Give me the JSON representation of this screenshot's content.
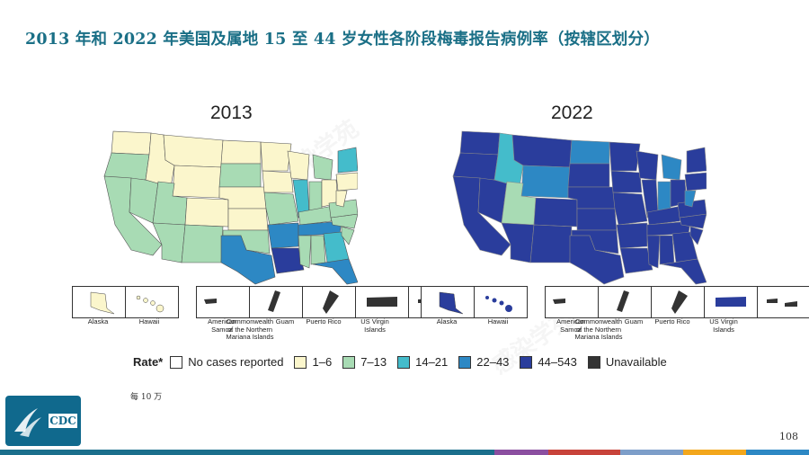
{
  "slide": {
    "title": "2013 年和 2022 年美国及属地 15 至 44 岁女性各阶段梅毒报告病例率（按辖区划分）",
    "page_number": "108",
    "footnote": "每 10 万",
    "logo_text": "CDC",
    "watermark_text": "感染学苑"
  },
  "maps": [
    {
      "year": "2013"
    },
    {
      "year": "2022"
    }
  ],
  "insets": [
    {
      "label": "Alaska",
      "key": "alaska"
    },
    {
      "label": "Hawaii",
      "key": "hawaii"
    },
    {
      "label": "American\nSamoa",
      "key": "samoa"
    },
    {
      "label": "Commonwealth\nof the Northern\nMariana Islands",
      "key": "cnmi"
    },
    {
      "label": "Guam",
      "key": "guam"
    },
    {
      "label": "Puerto Rico",
      "key": "pr"
    },
    {
      "label": "US Virgin\nIslands",
      "key": "usvi"
    }
  ],
  "legend": {
    "title": "Rate*",
    "items": [
      {
        "label": "No cases reported",
        "color": "#ffffff"
      },
      {
        "label": "1–6",
        "color": "#fbf6cc"
      },
      {
        "label": "7–13",
        "color": "#a8dbb4"
      },
      {
        "label": "14–21",
        "color": "#44bccb"
      },
      {
        "label": "22–43",
        "color": "#2d88c4"
      },
      {
        "label": "44–543",
        "color": "#2a3d9c"
      },
      {
        "label": "Unavailable",
        "color": "#333333"
      }
    ]
  },
  "bottom_bar_colors": [
    "#1b6f8c",
    "#1b6f8c",
    "#1b6f8c",
    "#8b4fa0",
    "#c8433a",
    "#7d9ec9",
    "#f3a71c",
    "#2d88c4"
  ]
}
